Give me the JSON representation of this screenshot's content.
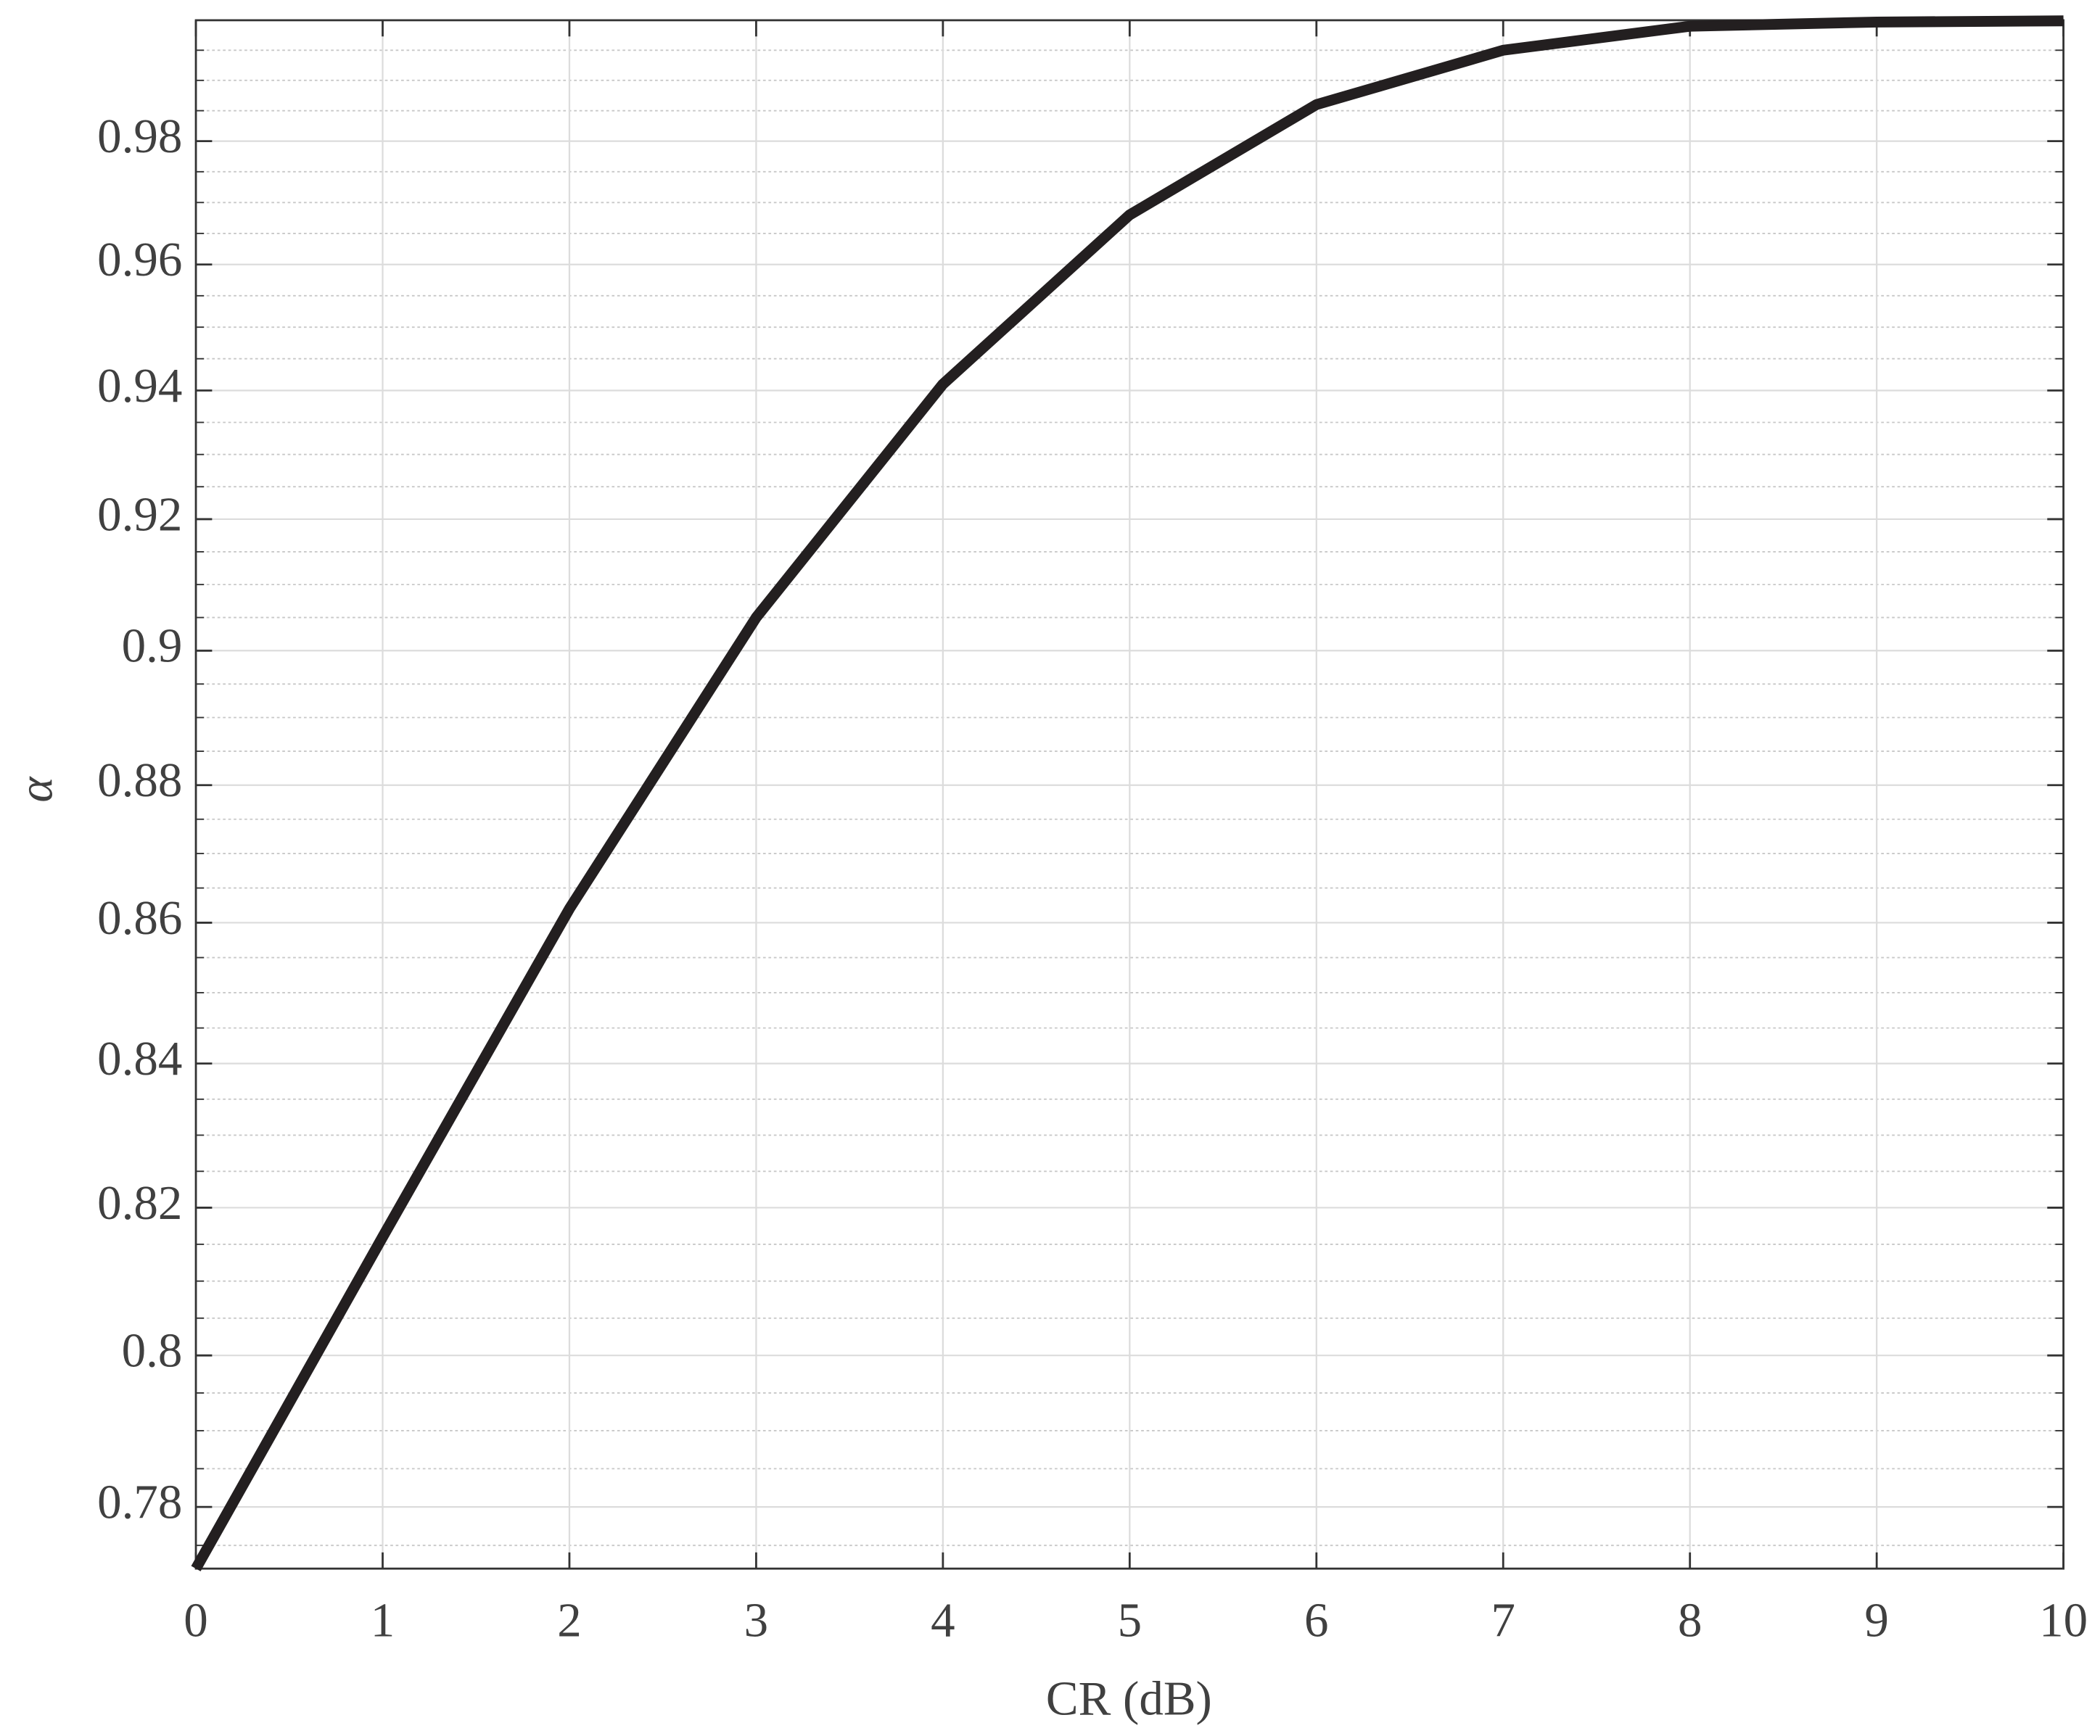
{
  "chart_data": {
    "type": "line",
    "xlabel": "CR (dB)",
    "ylabel": "α",
    "x": [
      0,
      1,
      2,
      3,
      4,
      5,
      6,
      7,
      8,
      9,
      10
    ],
    "series": [
      {
        "color": "#231f20",
        "values": [
          0.772,
          0.816,
          0.862,
          0.905,
          0.941,
          0.968,
          0.986,
          0.995,
          0.999,
          0.9997,
          0.9999
        ]
      }
    ],
    "xlim": [
      0,
      10
    ],
    "xticks": [
      0,
      1,
      2,
      3,
      4,
      5,
      6,
      7,
      8,
      9,
      10
    ],
    "ylim": [
      0.772,
      1.0
    ],
    "yscale": "log",
    "yticks": [
      0.78,
      0.8,
      0.82,
      0.84,
      0.86,
      0.88,
      0.9,
      0.92,
      0.94,
      0.96,
      0.98
    ],
    "yminorticks": [
      0.775,
      0.785,
      0.79,
      0.795,
      0.805,
      0.81,
      0.815,
      0.825,
      0.83,
      0.835,
      0.845,
      0.85,
      0.855,
      0.865,
      0.87,
      0.875,
      0.885,
      0.89,
      0.895,
      0.905,
      0.91,
      0.915,
      0.925,
      0.93,
      0.935,
      0.945,
      0.95,
      0.955,
      0.965,
      0.97,
      0.975,
      0.985,
      0.99,
      0.995
    ],
    "grid": true
  }
}
